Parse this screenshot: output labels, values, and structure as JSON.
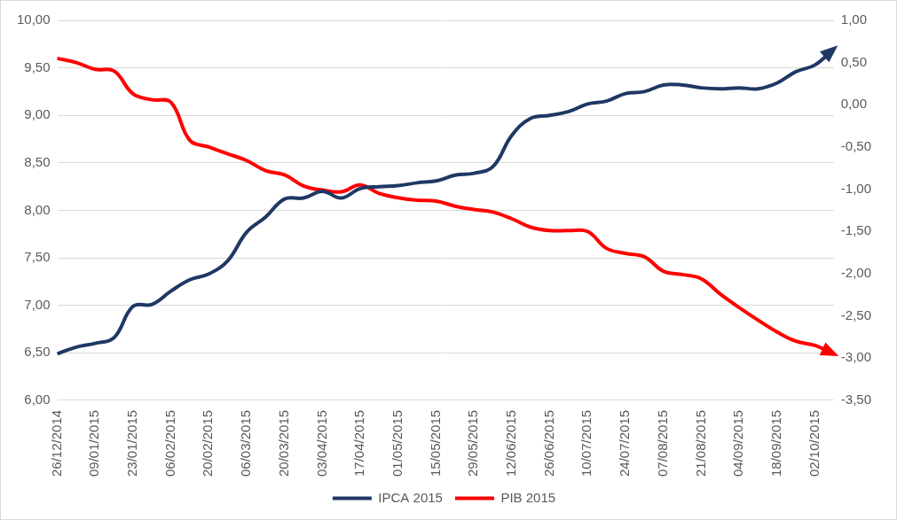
{
  "chart_data": {
    "type": "line",
    "categories": [
      "26/12/2014",
      null,
      "09/01/2015",
      null,
      "23/01/2015",
      null,
      "06/02/2015",
      null,
      "20/02/2015",
      null,
      "06/03/2015",
      null,
      "20/03/2015",
      null,
      "03/04/2015",
      null,
      "17/04/2015",
      null,
      "01/05/2015",
      null,
      "15/05/2015",
      null,
      "29/05/2015",
      null,
      "12/06/2015",
      null,
      "26/06/2015",
      null,
      "10/07/2015",
      null,
      "24/07/2015",
      null,
      "07/08/2015",
      null,
      "21/08/2015",
      null,
      "04/09/2015",
      null,
      "18/09/2015",
      null,
      "02/10/2015",
      null
    ],
    "series": [
      {
        "name": "IPCA 2015",
        "color": "#1f3864",
        "axis": "y",
        "values": [
          6.49,
          6.56,
          6.6,
          6.66,
          6.99,
          7.01,
          7.15,
          7.27,
          7.33,
          7.47,
          7.77,
          7.93,
          8.12,
          8.13,
          8.2,
          8.13,
          8.23,
          8.25,
          8.26,
          8.29,
          8.31,
          8.37,
          8.39,
          8.46,
          8.79,
          8.97,
          9.0,
          9.04,
          9.12,
          9.15,
          9.23,
          9.25,
          9.32,
          9.32,
          9.29,
          9.28,
          9.29,
          9.28,
          9.34,
          9.46,
          9.53,
          9.7
        ]
      },
      {
        "name": "PIB 2015",
        "color": "#ff0000",
        "axis": "y2",
        "values": [
          0.55,
          0.5,
          0.42,
          0.4,
          0.13,
          0.06,
          0.03,
          -0.42,
          -0.5,
          -0.58,
          -0.66,
          -0.78,
          -0.83,
          -0.96,
          -1.01,
          -1.03,
          -0.95,
          -1.05,
          -1.1,
          -1.13,
          -1.14,
          -1.2,
          -1.24,
          -1.27,
          -1.35,
          -1.45,
          -1.49,
          -1.49,
          -1.5,
          -1.7,
          -1.76,
          -1.8,
          -1.97,
          -2.01,
          -2.06,
          -2.24,
          -2.4,
          -2.55,
          -2.69,
          -2.8,
          -2.85,
          -2.95
        ]
      }
    ],
    "ylim": [
      6,
      10
    ],
    "yticks": [
      {
        "value": 6,
        "label": "6,00"
      },
      {
        "value": 6.5,
        "label": "6,50"
      },
      {
        "value": 7,
        "label": "7,00"
      },
      {
        "value": 7.5,
        "label": "7,50"
      },
      {
        "value": 8,
        "label": "8,00"
      },
      {
        "value": 8.5,
        "label": "8,50"
      },
      {
        "value": 9,
        "label": "9,00"
      },
      {
        "value": 9.5,
        "label": "9,50"
      },
      {
        "value": 10,
        "label": "10,00"
      }
    ],
    "y2lim": [
      -3.5,
      1
    ],
    "y2ticks": [
      {
        "value": -3.5,
        "label": "-3,50"
      },
      {
        "value": -3,
        "label": "-3,00"
      },
      {
        "value": -2.5,
        "label": "-2,50"
      },
      {
        "value": -2,
        "label": "-2,00"
      },
      {
        "value": -1.5,
        "label": "-1,50"
      },
      {
        "value": -1,
        "label": "-1,00"
      },
      {
        "value": -0.5,
        "label": "-0,50"
      },
      {
        "value": 0,
        "label": "0,00"
      },
      {
        "value": 0.5,
        "label": "0,50"
      },
      {
        "value": 1,
        "label": "1,00"
      }
    ],
    "grid": true,
    "legend": "bottom",
    "marker": "none",
    "line_style": "solid"
  }
}
